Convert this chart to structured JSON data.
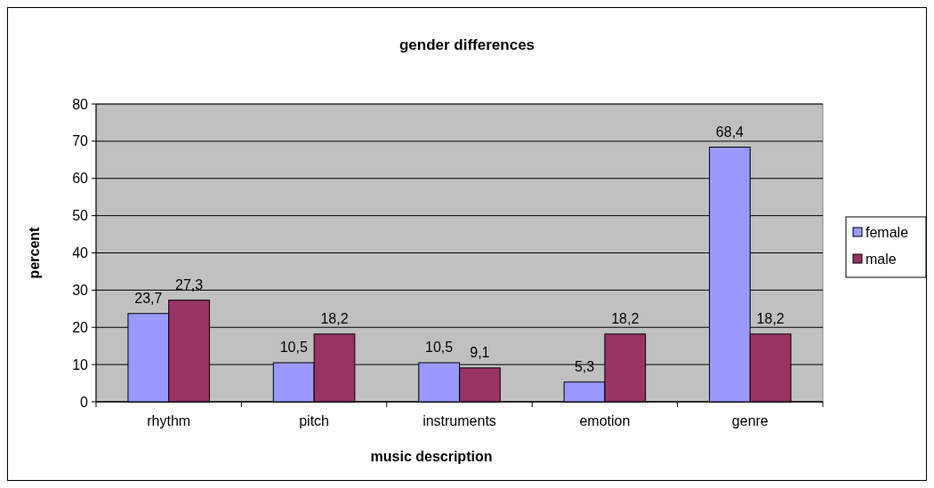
{
  "chart_data": {
    "type": "bar",
    "title": "gender differences",
    "xlabel": "music description",
    "ylabel": "percent",
    "categories": [
      "rhythm",
      "pitch",
      "instruments",
      "emotion",
      "genre"
    ],
    "series": [
      {
        "name": "female",
        "color": "#9999ff",
        "values": [
          23.7,
          10.5,
          10.5,
          5.3,
          68.4
        ],
        "value_labels": [
          "23,7",
          "10,5",
          "10,5",
          "5,3",
          "68,4"
        ]
      },
      {
        "name": "male",
        "color": "#993366",
        "values": [
          27.3,
          18.2,
          9.1,
          18.2,
          18.2
        ],
        "value_labels": [
          "27,3",
          "18,2",
          "9,1",
          "18,2",
          "18,2"
        ]
      }
    ],
    "ylim": [
      0,
      80
    ],
    "yticks": [
      0,
      10,
      20,
      30,
      40,
      50,
      60,
      70,
      80
    ],
    "grid": "y",
    "legend": "right"
  }
}
